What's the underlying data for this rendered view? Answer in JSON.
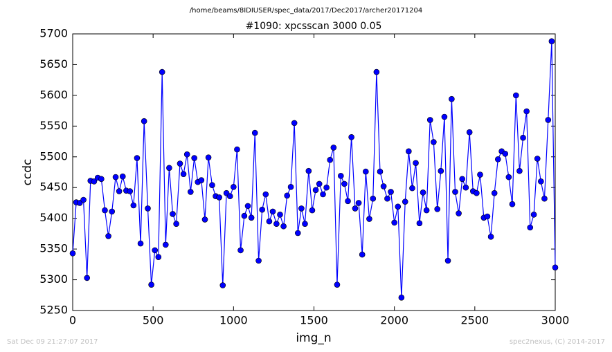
{
  "chart_data": {
    "type": "line",
    "suptitle": "/home/beams/8IDIUSER/spec_data/2017/Dec2017/archer20171204",
    "title": "#1090: xpcsscan 3000 0.05",
    "x_label": "img_n",
    "y_label": "ccdc",
    "footer_left": "Sat Dec 09 21:27:07 2017",
    "footer_right": "spec2nexus, (C) 2014-2017",
    "xlim": [
      0,
      3000
    ],
    "ylim": [
      5250,
      5700
    ],
    "xticks": [
      0,
      500,
      1000,
      1500,
      2000,
      2500,
      3000
    ],
    "yticks": [
      5250,
      5300,
      5350,
      5400,
      5450,
      5500,
      5550,
      5600,
      5650,
      5700
    ],
    "grid": false,
    "x": [
      0,
      22,
      44,
      67,
      89,
      111,
      133,
      156,
      178,
      200,
      222,
      244,
      267,
      289,
      311,
      333,
      356,
      378,
      400,
      422,
      444,
      467,
      489,
      511,
      533,
      556,
      578,
      600,
      622,
      644,
      667,
      689,
      711,
      733,
      756,
      778,
      800,
      822,
      844,
      867,
      889,
      911,
      933,
      956,
      978,
      1000,
      1022,
      1044,
      1067,
      1089,
      1111,
      1133,
      1156,
      1178,
      1200,
      1222,
      1244,
      1267,
      1289,
      1311,
      1333,
      1356,
      1378,
      1400,
      1422,
      1444,
      1467,
      1489,
      1511,
      1533,
      1556,
      1578,
      1600,
      1622,
      1644,
      1667,
      1689,
      1711,
      1733,
      1756,
      1778,
      1800,
      1822,
      1844,
      1867,
      1889,
      1911,
      1933,
      1956,
      1978,
      2000,
      2022,
      2044,
      2067,
      2089,
      2111,
      2133,
      2156,
      2178,
      2200,
      2222,
      2244,
      2267,
      2289,
      2311,
      2333,
      2356,
      2378,
      2400,
      2422,
      2444,
      2467,
      2489,
      2511,
      2533,
      2556,
      2578,
      2600,
      2622,
      2644,
      2667,
      2689,
      2711,
      2733,
      2756,
      2778,
      2800,
      2822,
      2844,
      2867,
      2889,
      2911,
      2933,
      2956,
      2978,
      3000
    ],
    "series": [
      {
        "name": "ccdc",
        "color": "#0000ff",
        "values": [
          5343,
          5426,
          5425,
          5430,
          5303,
          5461,
          5460,
          5466,
          5464,
          5413,
          5371,
          5411,
          5467,
          5444,
          5468,
          5445,
          5444,
          5421,
          5498,
          5359,
          5558,
          5416,
          5292,
          5348,
          5337,
          5638,
          5357,
          5482,
          5407,
          5391,
          5489,
          5472,
          5504,
          5443,
          5498,
          5459,
          5462,
          5398,
          5499,
          5454,
          5436,
          5434,
          5291,
          5441,
          5436,
          5451,
          5512,
          5348,
          5404,
          5420,
          5401,
          5539,
          5331,
          5414,
          5439,
          5395,
          5411,
          5391,
          5406,
          5387,
          5437,
          5451,
          5555,
          5376,
          5416,
          5391,
          5477,
          5413,
          5446,
          5456,
          5439,
          5450,
          5495,
          5515,
          5292,
          5469,
          5456,
          5428,
          5532,
          5416,
          5425,
          5341,
          5476,
          5399,
          5432,
          5638,
          5476,
          5452,
          5432,
          5443,
          5393,
          5419,
          5271,
          5427,
          5509,
          5449,
          5490,
          5392,
          5442,
          5413,
          5560,
          5524,
          5415,
          5477,
          5565,
          5331,
          5594,
          5443,
          5408,
          5464,
          5450,
          5540,
          5444,
          5441,
          5471,
          5401,
          5403,
          5370,
          5441,
          5496,
          5509,
          5505,
          5467,
          5423,
          5600,
          5477,
          5531,
          5574,
          5385,
          5406,
          5497,
          5460,
          5432,
          5560,
          5688,
          5320
        ]
      }
    ]
  }
}
